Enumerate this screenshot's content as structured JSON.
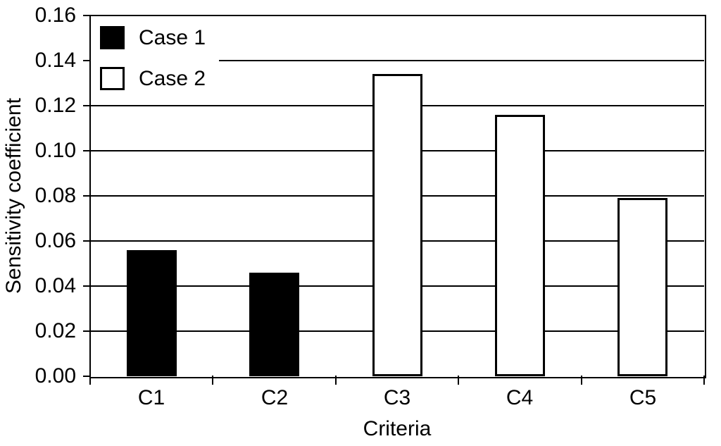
{
  "chart_data": {
    "type": "bar",
    "xlabel": "Criteria",
    "ylabel": "Sensitivity coefficient",
    "categories": [
      "C1",
      "C2",
      "C3",
      "C4",
      "C5"
    ],
    "series": [
      {
        "name": "Case 1",
        "fill": "#000000",
        "values": [
          0.056,
          0.046,
          null,
          null,
          null
        ]
      },
      {
        "name": "Case 2",
        "fill": "#ffffff",
        "values": [
          null,
          null,
          0.134,
          0.116,
          0.079
        ]
      }
    ],
    "ylim": [
      0,
      0.16
    ],
    "ytick_step": 0.02,
    "ytick_labels": [
      "0.00",
      "0.02",
      "0.04",
      "0.06",
      "0.08",
      "0.10",
      "0.12",
      "0.14",
      "0.16"
    ],
    "grid": true,
    "legend_position": "top-left",
    "axis_color": "#000000",
    "bar_border_color": "#000000",
    "background_color": "#ffffff"
  }
}
